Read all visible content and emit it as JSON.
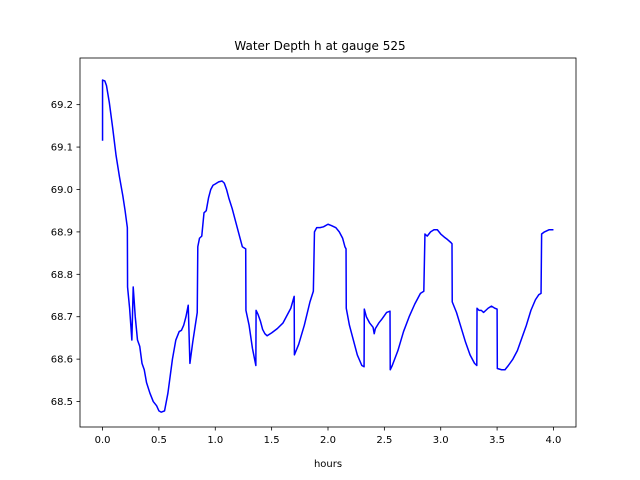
{
  "chart_data": {
    "type": "line",
    "title": "Water Depth h at gauge 525",
    "xlabel": "hours",
    "ylabel": "",
    "xlim": [
      -0.2,
      4.2
    ],
    "ylim": [
      68.44,
      69.31
    ],
    "xticks": [
      0.0,
      0.5,
      1.0,
      1.5,
      2.0,
      2.5,
      3.0,
      3.5,
      4.0
    ],
    "xtick_labels": [
      "0.0",
      "0.5",
      "1.0",
      "1.5",
      "2.0",
      "2.5",
      "3.0",
      "3.5",
      "4.0"
    ],
    "yticks": [
      68.5,
      68.6,
      68.7,
      68.8,
      68.9,
      69.0,
      69.1,
      69.2
    ],
    "ytick_labels": [
      "68.5",
      "68.6",
      "68.7",
      "68.8",
      "68.9",
      "69.0",
      "69.1",
      "69.2"
    ],
    "grid": false,
    "color": "#0000ff",
    "series": [
      {
        "x": [
          0.0,
          0.0,
          0.02,
          0.035,
          0.06,
          0.09,
          0.12,
          0.15,
          0.18,
          0.2,
          0.22,
          0.222,
          0.24,
          0.26,
          0.272,
          0.28,
          0.29,
          0.31,
          0.33,
          0.35,
          0.37,
          0.39,
          0.42,
          0.45,
          0.48,
          0.5,
          0.52,
          0.55,
          0.58,
          0.6,
          0.62,
          0.65,
          0.68,
          0.7,
          0.72,
          0.74,
          0.76,
          0.775,
          0.78,
          0.8,
          0.82,
          0.84,
          0.845,
          0.86,
          0.88,
          0.9,
          0.92,
          0.94,
          0.96,
          0.98,
          1.0,
          1.03,
          1.06,
          1.08,
          1.1,
          1.12,
          1.15,
          1.18,
          1.21,
          1.24,
          1.27,
          1.272,
          1.3,
          1.33,
          1.36,
          1.362,
          1.38,
          1.4,
          1.42,
          1.44,
          1.46,
          1.5,
          1.55,
          1.6,
          1.63,
          1.67,
          1.7,
          1.702,
          1.74,
          1.79,
          1.84,
          1.87,
          1.88,
          1.9,
          1.93,
          1.96,
          2.0,
          2.03,
          2.07,
          2.1,
          2.13,
          2.15,
          2.16,
          2.162,
          2.19,
          2.22,
          2.26,
          2.3,
          2.32,
          2.322,
          2.34,
          2.37,
          2.4,
          2.41,
          2.42,
          2.45,
          2.48,
          2.52,
          2.55,
          2.552,
          2.57,
          2.62,
          2.67,
          2.72,
          2.77,
          2.82,
          2.85,
          2.86,
          2.88,
          2.91,
          2.94,
          2.97,
          3.0,
          3.03,
          3.06,
          3.09,
          3.1,
          3.102,
          3.14,
          3.18,
          3.22,
          3.26,
          3.3,
          3.32,
          3.322,
          3.34,
          3.36,
          3.38,
          3.4,
          3.42,
          3.45,
          3.48,
          3.5,
          3.502,
          3.54,
          3.57,
          3.6,
          3.64,
          3.68,
          3.72,
          3.76,
          3.8,
          3.84,
          3.87,
          3.89,
          3.895,
          3.92,
          3.96,
          4.0
        ],
        "y": [
          69.115,
          69.258,
          69.256,
          69.245,
          69.205,
          69.145,
          69.08,
          69.03,
          68.985,
          68.95,
          68.91,
          68.77,
          68.72,
          68.645,
          68.77,
          68.74,
          68.7,
          68.645,
          68.63,
          68.59,
          68.575,
          68.545,
          68.52,
          68.5,
          68.49,
          68.478,
          68.475,
          68.478,
          68.52,
          68.56,
          68.6,
          68.645,
          68.665,
          68.668,
          68.68,
          68.7,
          68.727,
          68.59,
          68.6,
          68.64,
          68.675,
          68.71,
          68.865,
          68.885,
          68.89,
          68.945,
          68.95,
          68.98,
          69.0,
          69.01,
          69.013,
          69.018,
          69.02,
          69.015,
          69.0,
          68.98,
          68.955,
          68.925,
          68.895,
          68.865,
          68.86,
          68.715,
          68.68,
          68.625,
          68.585,
          68.715,
          68.705,
          68.69,
          68.67,
          68.66,
          68.655,
          68.662,
          68.672,
          68.685,
          68.7,
          68.72,
          68.748,
          68.61,
          68.635,
          68.68,
          68.735,
          68.76,
          68.9,
          68.91,
          68.91,
          68.912,
          68.918,
          68.915,
          68.91,
          68.9,
          68.885,
          68.865,
          68.86,
          68.72,
          68.68,
          68.65,
          68.61,
          68.585,
          68.582,
          68.718,
          68.7,
          68.685,
          68.675,
          68.66,
          68.672,
          68.685,
          68.695,
          68.71,
          68.713,
          68.575,
          68.585,
          68.62,
          68.665,
          68.7,
          68.73,
          68.755,
          68.76,
          68.895,
          68.89,
          68.9,
          68.905,
          68.905,
          68.895,
          68.888,
          68.882,
          68.875,
          68.872,
          68.735,
          68.71,
          68.675,
          68.64,
          68.61,
          68.59,
          68.585,
          68.72,
          68.715,
          68.715,
          68.71,
          68.715,
          68.72,
          68.725,
          68.72,
          68.718,
          68.578,
          68.575,
          68.575,
          68.585,
          68.6,
          68.62,
          68.65,
          68.68,
          68.715,
          68.74,
          68.752,
          68.755,
          68.895,
          68.9,
          68.905,
          68.905
        ]
      }
    ]
  }
}
